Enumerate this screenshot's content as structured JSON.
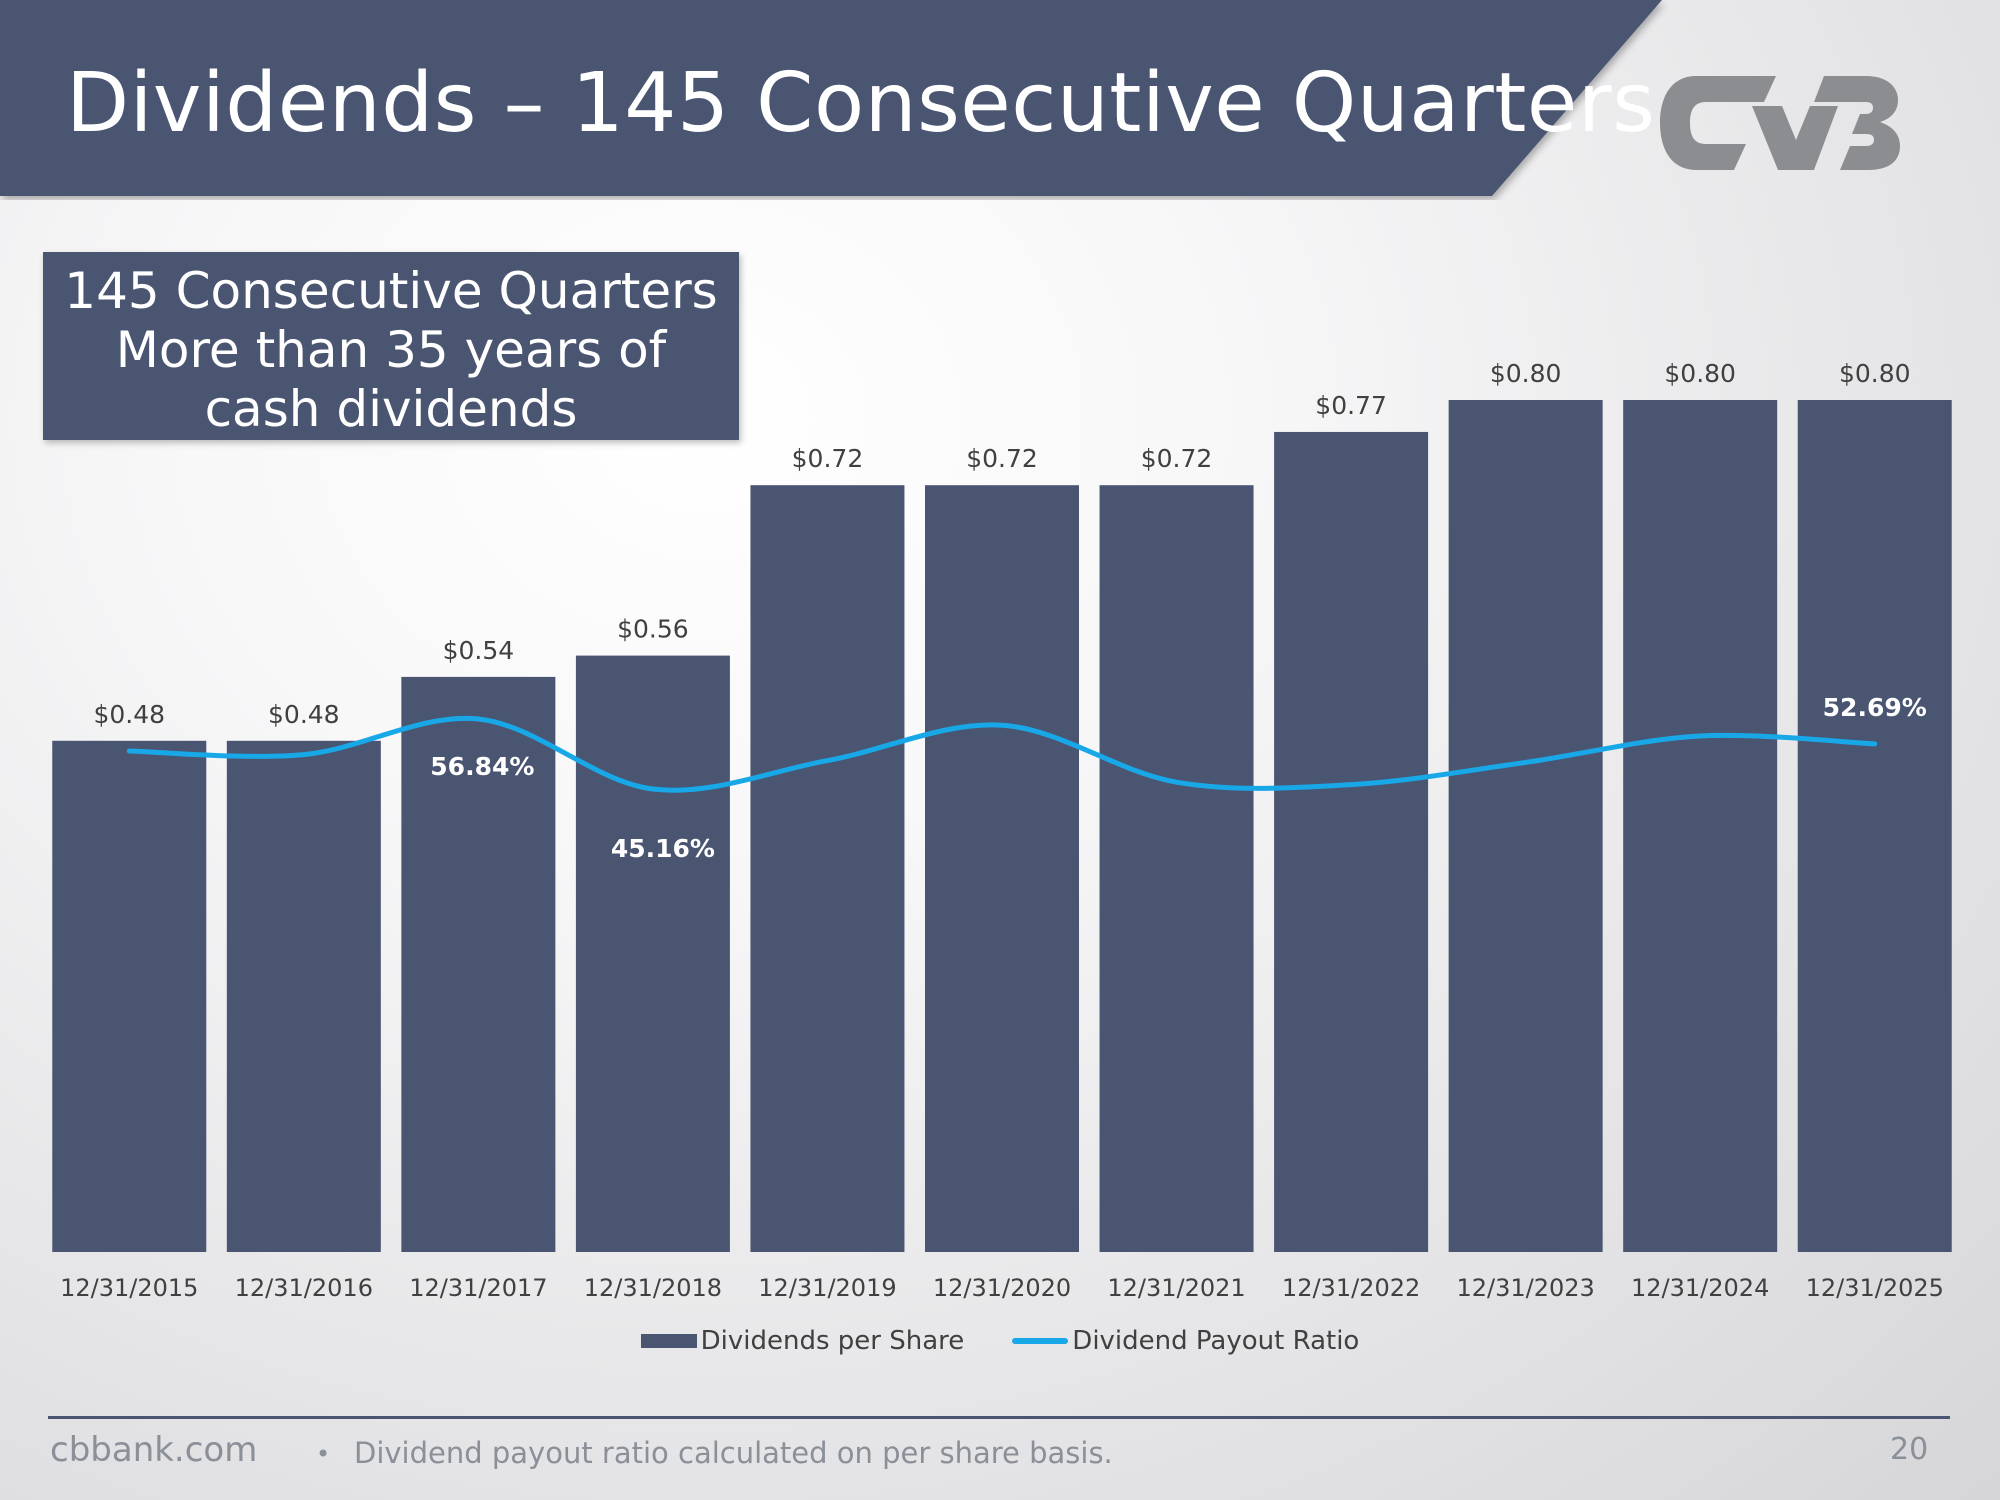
{
  "header": {
    "title": "Dividends – 145 Consecutive Quarters"
  },
  "callout": {
    "line1": "145 Consecutive Quarters",
    "line2": "More than 35 years of",
    "line3": "cash dividends"
  },
  "colors": {
    "banner": "#4a5571",
    "bar": "#4a5571",
    "line": "#18a8e8",
    "logo": "#8b8d91"
  },
  "chart_data": {
    "type": "bar",
    "title": "Dividends – 145 Consecutive Quarters",
    "xlabel": "",
    "ylabel": "",
    "ylim": [
      0,
      0.85
    ],
    "categories": [
      "12/31/2015",
      "12/31/2016",
      "12/31/2017",
      "12/31/2018",
      "12/31/2019",
      "12/31/2020",
      "12/31/2021",
      "12/31/2022",
      "12/31/2023",
      "12/31/2024",
      "12/31/2025"
    ],
    "series": [
      {
        "name": "Dividends per Share",
        "type": "bar",
        "values": [
          0.48,
          0.48,
          0.54,
          0.56,
          0.72,
          0.72,
          0.72,
          0.77,
          0.8,
          0.8,
          0.8
        ],
        "labels": [
          "$0.48",
          "$0.48",
          "$0.54",
          "$0.56",
          "$0.72",
          "$0.72",
          "$0.72",
          "$0.77",
          "$0.80",
          "$0.80",
          "$0.80"
        ]
      },
      {
        "name": "Dividend Payout Ratio",
        "type": "line",
        "values": [
          51.5,
          50.9,
          56.84,
          45.16,
          49.9,
          55.8,
          46.3,
          45.9,
          49.6,
          54.0,
          52.69
        ],
        "labels": [
          "",
          "",
          "56.84%",
          "45.16%",
          "",
          "",
          "",
          "",
          "",
          "",
          "52.69%"
        ]
      }
    ]
  },
  "legend": {
    "bar_label": "Dividends per Share",
    "line_label": "Dividend Payout Ratio"
  },
  "footer": {
    "site": "cbbank.com",
    "bullet": "•",
    "note": "Dividend payout ratio calculated on per share basis.",
    "page": "20"
  }
}
